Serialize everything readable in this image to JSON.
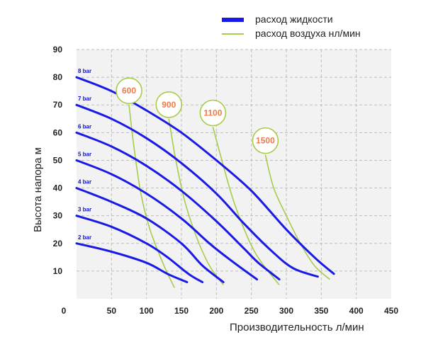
{
  "legend": {
    "liquid": "расход жидкости",
    "air": "расход воздуха нл/мин"
  },
  "colors": {
    "liquid": "#1a1ae6",
    "air": "#a6cc4a",
    "air_label": "#f07a4a",
    "plot_bg": "#f2f2f2",
    "grid": "#bdbdbd"
  },
  "chart_data": {
    "type": "line",
    "xlabel": "Производительность  л/мин",
    "ylabel": "Высота напора м",
    "xlim": [
      0,
      450
    ],
    "ylim": [
      0,
      90
    ],
    "x_ticks": [
      "0",
      "50",
      "100",
      "150",
      "200",
      "250",
      "300",
      "350",
      "400",
      "450"
    ],
    "y_ticks": [
      "10",
      "20",
      "30",
      "40",
      "50",
      "60",
      "70",
      "80",
      "90"
    ],
    "grid": true,
    "legend_position": "top-right",
    "series": [
      {
        "name": "8 bar",
        "points": [
          [
            0,
            80
          ],
          [
            50,
            75
          ],
          [
            100,
            68
          ],
          [
            150,
            60
          ],
          [
            200,
            50
          ],
          [
            250,
            39
          ],
          [
            300,
            25
          ],
          [
            340,
            15
          ],
          [
            368,
            9
          ]
        ]
      },
      {
        "name": "7 bar",
        "points": [
          [
            0,
            70
          ],
          [
            50,
            65
          ],
          [
            100,
            58
          ],
          [
            150,
            49
          ],
          [
            200,
            38
          ],
          [
            240,
            27
          ],
          [
            280,
            17
          ],
          [
            310,
            11
          ],
          [
            345,
            8
          ]
        ]
      },
      {
        "name": "6 bar",
        "points": [
          [
            0,
            60
          ],
          [
            50,
            55
          ],
          [
            100,
            48
          ],
          [
            150,
            39
          ],
          [
            200,
            28
          ],
          [
            240,
            18
          ],
          [
            260,
            13
          ],
          [
            290,
            7
          ]
        ]
      },
      {
        "name": "5 bar",
        "points": [
          [
            0,
            50
          ],
          [
            50,
            45
          ],
          [
            100,
            38
          ],
          [
            150,
            29
          ],
          [
            190,
            20
          ],
          [
            220,
            14
          ],
          [
            258,
            7
          ]
        ]
      },
      {
        "name": "4 bar",
        "points": [
          [
            0,
            40
          ],
          [
            50,
            35
          ],
          [
            100,
            29
          ],
          [
            150,
            20
          ],
          [
            180,
            12
          ],
          [
            210,
            6
          ]
        ]
      },
      {
        "name": "3 bar",
        "points": [
          [
            0,
            30
          ],
          [
            50,
            26
          ],
          [
            100,
            20
          ],
          [
            130,
            15
          ],
          [
            160,
            9
          ],
          [
            180,
            6
          ]
        ]
      },
      {
        "name": "2 bar",
        "points": [
          [
            0,
            20
          ],
          [
            50,
            17
          ],
          [
            100,
            13
          ],
          [
            130,
            9
          ],
          [
            158,
            6
          ]
        ]
      }
    ],
    "air_flow": [
      {
        "label": "600",
        "points": [
          [
            75,
            70
          ],
          [
            82,
            55
          ],
          [
            92,
            38
          ],
          [
            105,
            25
          ],
          [
            125,
            12
          ],
          [
            140,
            4
          ]
        ]
      },
      {
        "label": "900",
        "points": [
          [
            132,
            65
          ],
          [
            142,
            50
          ],
          [
            155,
            35
          ],
          [
            172,
            22
          ],
          [
            190,
            12
          ],
          [
            210,
            5
          ]
        ]
      },
      {
        "label": "1100",
        "points": [
          [
            195,
            62
          ],
          [
            210,
            48
          ],
          [
            225,
            35
          ],
          [
            245,
            22
          ],
          [
            262,
            14
          ],
          [
            290,
            5
          ]
        ]
      },
      {
        "label": "1500",
        "points": [
          [
            270,
            52
          ],
          [
            282,
            40
          ],
          [
            300,
            30
          ],
          [
            320,
            20
          ],
          [
            340,
            12
          ],
          [
            362,
            7
          ]
        ]
      }
    ]
  }
}
